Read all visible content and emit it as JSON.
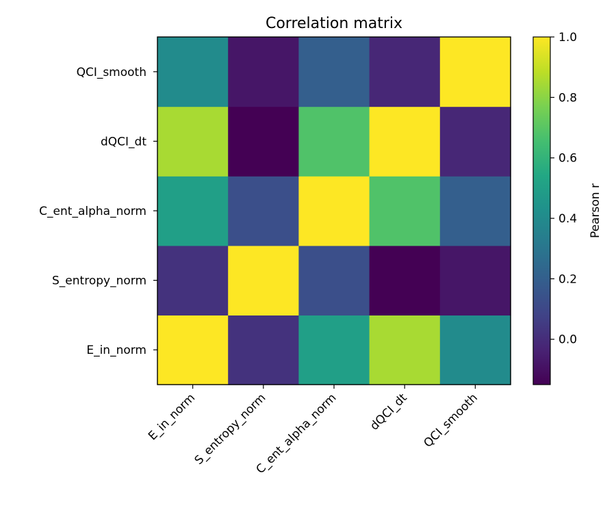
{
  "chart_data": {
    "type": "heatmap",
    "title": "Correlation matrix",
    "x_categories": [
      "E_in_norm",
      "S_entropy_norm",
      "C_ent_alpha_norm",
      "dQCI_dt",
      "QCI_smooth"
    ],
    "y_categories": [
      "E_in_norm",
      "S_entropy_norm",
      "C_ent_alpha_norm",
      "dQCI_dt",
      "QCI_smooth"
    ],
    "values": [
      [
        1.0,
        0.02,
        0.5,
        0.85,
        0.4
      ],
      [
        0.02,
        1.0,
        0.13,
        -0.15,
        -0.08
      ],
      [
        0.5,
        0.13,
        1.0,
        0.68,
        0.2
      ],
      [
        0.85,
        -0.15,
        0.68,
        1.0,
        -0.02
      ],
      [
        0.4,
        -0.08,
        0.2,
        -0.02,
        1.0
      ]
    ],
    "y_order": "first category at bottom",
    "colormap": "viridis",
    "colorbar": {
      "label": "Pearson r",
      "range": [
        -0.15,
        1.0
      ],
      "ticks": [
        "0.0",
        "0.2",
        "0.4",
        "0.6",
        "0.8",
        "1.0"
      ]
    },
    "xtick_rotation": "45 degrees",
    "grid": false
  }
}
